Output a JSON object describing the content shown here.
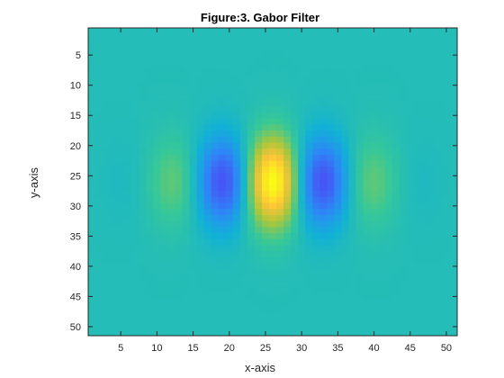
{
  "chart_data": {
    "type": "heatmap",
    "title": "Figure:3. Gabor Filter",
    "xlabel": "x-axis",
    "ylabel": "y-axis",
    "xlim": [
      0.5,
      51.5
    ],
    "ylim": [
      0.5,
      51.5
    ],
    "y_reversed": true,
    "grid_size": 51,
    "x_ticks": [
      "5",
      "10",
      "15",
      "20",
      "25",
      "30",
      "35",
      "40",
      "45",
      "50"
    ],
    "y_ticks": [
      "5",
      "10",
      "15",
      "20",
      "25",
      "30",
      "35",
      "40",
      "45",
      "50"
    ],
    "colormap": "parula",
    "clim": [
      -1,
      1
    ],
    "filter": {
      "center_x": 26,
      "center_y": 26,
      "sigma_x": 8.5,
      "sigma_y": 5.2,
      "wavelength": 15,
      "phase": 0
    },
    "grid": false
  }
}
